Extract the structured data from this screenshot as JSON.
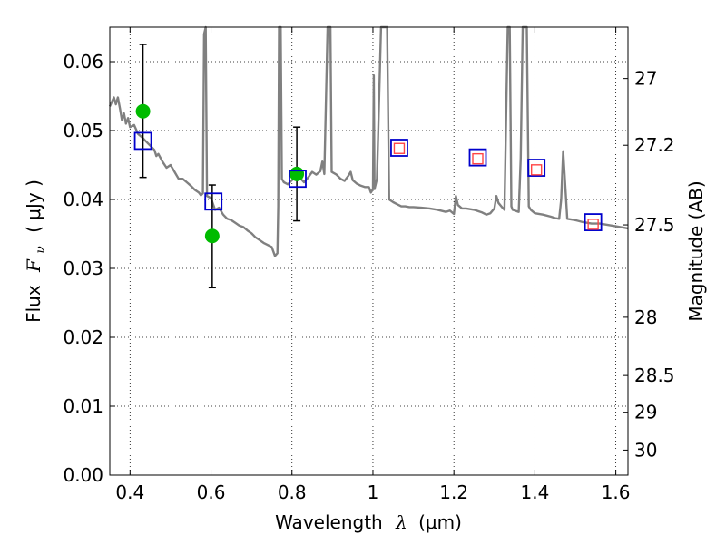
{
  "chart_data": {
    "type": "scatter",
    "xlabel_pre": "Wavelength",
    "xlabel_sym": "λ",
    "xlabel_post": "(μm)",
    "ylabel_pre": "Flux",
    "ylabel_sym": "F",
    "ylabel_sub": "ν",
    "ylabel_post": "( μJy )",
    "y2label": "Magnitude (AB)",
    "xlim": [
      0.35,
      1.63
    ],
    "ylim": [
      0,
      0.065
    ],
    "grid": true,
    "x_ticks": [
      0.4,
      0.6,
      0.8,
      1.0,
      1.2,
      1.4,
      1.6
    ],
    "x_tick_labels": [
      "0.4",
      "0.6",
      "0.8",
      "1",
      "1.2",
      "1.4",
      "1.6"
    ],
    "y_ticks": [
      0,
      0.01,
      0.02,
      0.03,
      0.04,
      0.05,
      0.06
    ],
    "y_tick_labels": [
      "0.00",
      "0.01",
      "0.02",
      "0.03",
      "0.04",
      "0.05",
      "0.06"
    ],
    "mag_ticks": [
      27,
      27.2,
      27.5,
      28,
      28.5,
      29,
      30
    ],
    "mag_tick_labels": [
      "27",
      "27.2",
      "27.5",
      "28",
      "28.5",
      "29",
      "30"
    ],
    "model_spectrum": {
      "color": "#808080",
      "points": [
        [
          0.35,
          0.0535
        ],
        [
          0.36,
          0.0548
        ],
        [
          0.365,
          0.0538
        ],
        [
          0.37,
          0.0548
        ],
        [
          0.375,
          0.0532
        ],
        [
          0.38,
          0.0515
        ],
        [
          0.385,
          0.0525
        ],
        [
          0.39,
          0.051
        ],
        [
          0.395,
          0.0518
        ],
        [
          0.4,
          0.0505
        ],
        [
          0.41,
          0.0508
        ],
        [
          0.42,
          0.0495
        ],
        [
          0.43,
          0.049
        ],
        [
          0.44,
          0.0484
        ],
        [
          0.45,
          0.0478
        ],
        [
          0.46,
          0.0472
        ],
        [
          0.465,
          0.0463
        ],
        [
          0.47,
          0.0466
        ],
        [
          0.48,
          0.0455
        ],
        [
          0.49,
          0.0446
        ],
        [
          0.5,
          0.045
        ],
        [
          0.51,
          0.044
        ],
        [
          0.52,
          0.043
        ],
        [
          0.53,
          0.043
        ],
        [
          0.54,
          0.0425
        ],
        [
          0.55,
          0.042
        ],
        [
          0.56,
          0.0414
        ],
        [
          0.57,
          0.041
        ],
        [
          0.575,
          0.0406
        ],
        [
          0.58,
          0.0409
        ],
        [
          0.583,
          0.064
        ],
        [
          0.587,
          0.065
        ],
        [
          0.59,
          0.0405
        ],
        [
          0.6,
          0.0402
        ],
        [
          0.61,
          0.0385
        ],
        [
          0.62,
          0.0388
        ],
        [
          0.63,
          0.0378
        ],
        [
          0.64,
          0.0372
        ],
        [
          0.65,
          0.037
        ],
        [
          0.66,
          0.0366
        ],
        [
          0.67,
          0.0362
        ],
        [
          0.68,
          0.036
        ],
        [
          0.69,
          0.0355
        ],
        [
          0.7,
          0.0351
        ],
        [
          0.71,
          0.0345
        ],
        [
          0.72,
          0.0341
        ],
        [
          0.73,
          0.0337
        ],
        [
          0.74,
          0.0334
        ],
        [
          0.75,
          0.0331
        ],
        [
          0.758,
          0.0318
        ],
        [
          0.764,
          0.0322
        ],
        [
          0.766,
          0.039
        ],
        [
          0.768,
          0.065
        ],
        [
          0.772,
          0.065
        ],
        [
          0.775,
          0.043
        ],
        [
          0.78,
          0.0425
        ],
        [
          0.79,
          0.0422
        ],
        [
          0.8,
          0.0428
        ],
        [
          0.81,
          0.0432
        ],
        [
          0.82,
          0.0431
        ],
        [
          0.83,
          0.0425
        ],
        [
          0.84,
          0.0432
        ],
        [
          0.85,
          0.044
        ],
        [
          0.86,
          0.0436
        ],
        [
          0.87,
          0.0441
        ],
        [
          0.875,
          0.0455
        ],
        [
          0.88,
          0.0437
        ],
        [
          0.888,
          0.065
        ],
        [
          0.895,
          0.065
        ],
        [
          0.898,
          0.044
        ],
        [
          0.91,
          0.0436
        ],
        [
          0.92,
          0.043
        ],
        [
          0.93,
          0.0427
        ],
        [
          0.94,
          0.0435
        ],
        [
          0.945,
          0.044
        ],
        [
          0.95,
          0.0428
        ],
        [
          0.96,
          0.0423
        ],
        [
          0.97,
          0.042
        ],
        [
          0.98,
          0.0418
        ],
        [
          0.99,
          0.0418
        ],
        [
          0.995,
          0.041
        ],
        [
          1.0,
          0.0415
        ],
        [
          1.002,
          0.058
        ],
        [
          1.004,
          0.0415
        ],
        [
          1.01,
          0.043
        ],
        [
          1.02,
          0.065
        ],
        [
          1.035,
          0.065
        ],
        [
          1.04,
          0.04
        ],
        [
          1.05,
          0.0396
        ],
        [
          1.06,
          0.0393
        ],
        [
          1.07,
          0.039
        ],
        [
          1.08,
          0.039
        ],
        [
          1.09,
          0.0389
        ],
        [
          1.1,
          0.0389
        ],
        [
          1.12,
          0.0388
        ],
        [
          1.14,
          0.0387
        ],
        [
          1.16,
          0.0385
        ],
        [
          1.18,
          0.0382
        ],
        [
          1.19,
          0.0384
        ],
        [
          1.2,
          0.0379
        ],
        [
          1.205,
          0.0405
        ],
        [
          1.21,
          0.0392
        ],
        [
          1.22,
          0.0387
        ],
        [
          1.23,
          0.0387
        ],
        [
          1.25,
          0.0385
        ],
        [
          1.26,
          0.0383
        ],
        [
          1.27,
          0.0381
        ],
        [
          1.28,
          0.0378
        ],
        [
          1.29,
          0.038
        ],
        [
          1.3,
          0.0387
        ],
        [
          1.305,
          0.0405
        ],
        [
          1.31,
          0.0395
        ],
        [
          1.32,
          0.0388
        ],
        [
          1.325,
          0.0385
        ],
        [
          1.333,
          0.065
        ],
        [
          1.338,
          0.065
        ],
        [
          1.342,
          0.039
        ],
        [
          1.345,
          0.0385
        ],
        [
          1.36,
          0.0382
        ],
        [
          1.365,
          0.046
        ],
        [
          1.37,
          0.065
        ],
        [
          1.38,
          0.065
        ],
        [
          1.385,
          0.039
        ],
        [
          1.39,
          0.0385
        ],
        [
          1.4,
          0.038
        ],
        [
          1.42,
          0.0378
        ],
        [
          1.44,
          0.0375
        ],
        [
          1.45,
          0.0373
        ],
        [
          1.46,
          0.0372
        ],
        [
          1.465,
          0.04
        ],
        [
          1.47,
          0.047
        ],
        [
          1.475,
          0.042
        ],
        [
          1.48,
          0.0372
        ],
        [
          1.5,
          0.037
        ],
        [
          1.52,
          0.0367
        ],
        [
          1.54,
          0.0365
        ],
        [
          1.56,
          0.0365
        ],
        [
          1.58,
          0.0363
        ],
        [
          1.6,
          0.0361
        ],
        [
          1.63,
          0.0358
        ]
      ]
    },
    "series": [
      {
        "name": "",
        "marker": "circle",
        "color": "#00bb00",
        "points": [
          {
            "x": 0.432,
            "y": 0.0528,
            "yerr_low": 0.0432,
            "yerr_high": 0.0625
          },
          {
            "x": 0.603,
            "y": 0.0347,
            "yerr_low": 0.0272,
            "yerr_high": 0.0421
          },
          {
            "x": 0.812,
            "y": 0.0437,
            "yerr_low": 0.0369,
            "yerr_high": 0.0505
          }
        ]
      },
      {
        "name": "",
        "marker": "open-square",
        "color": "#0000cc",
        "points": [
          {
            "x": 0.432,
            "y": 0.0485
          },
          {
            "x": 0.606,
            "y": 0.0397
          },
          {
            "x": 0.814,
            "y": 0.043
          },
          {
            "x": 1.065,
            "y": 0.0475
          },
          {
            "x": 1.259,
            "y": 0.0461
          },
          {
            "x": 1.404,
            "y": 0.0446
          },
          {
            "x": 1.544,
            "y": 0.0367
          }
        ]
      },
      {
        "name": "",
        "marker": "open-square",
        "color": "#ff4444",
        "points": [
          {
            "x": 1.065,
            "y": 0.0474
          },
          {
            "x": 1.259,
            "y": 0.0459
          },
          {
            "x": 1.404,
            "y": 0.0443
          },
          {
            "x": 1.544,
            "y": 0.0364
          }
        ]
      }
    ]
  }
}
